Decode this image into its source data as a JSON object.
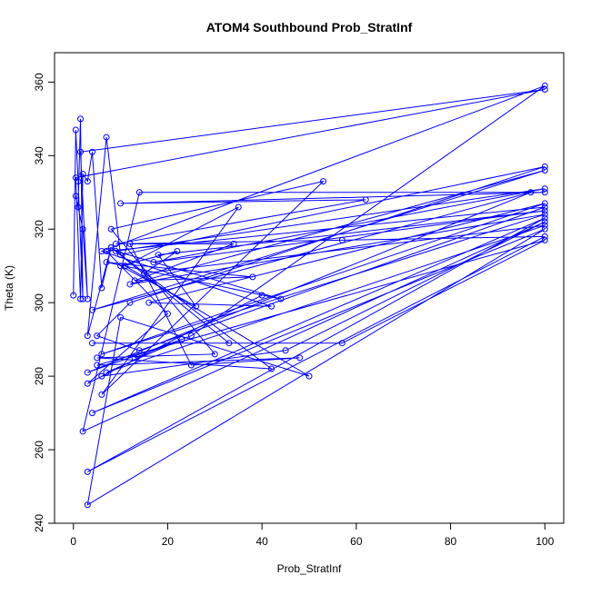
{
  "chart_data": {
    "type": "line",
    "title": "ATOM4 Southbound Prob_StratInf",
    "x_label": "Prob_StratInf",
    "y_label": "Theta (K)",
    "color": "#0000ff",
    "x": [
      0,
      0.5,
      1,
      2,
      1.5,
      1,
      0.5,
      2,
      3,
      1.5,
      100,
      0.5,
      1.5,
      2,
      3,
      4,
      6,
      8,
      3,
      7,
      10,
      100,
      12,
      5,
      14,
      100,
      7,
      20,
      3,
      40,
      6,
      45,
      100,
      2,
      14,
      100,
      10,
      62,
      9,
      57,
      100,
      3,
      100,
      4,
      100,
      3,
      10,
      50,
      11,
      35,
      6,
      53,
      8,
      30,
      5,
      42,
      8,
      33,
      4,
      57,
      100,
      5,
      48,
      25,
      12,
      34,
      13,
      38,
      7,
      44,
      9,
      100,
      17,
      100,
      18,
      26,
      10,
      22,
      15,
      100,
      7,
      23,
      3,
      97,
      4,
      100,
      12,
      100,
      6,
      100,
      16,
      42,
      6,
      100,
      25,
      13
    ],
    "values": [
      302,
      347,
      333,
      301,
      350,
      326,
      329,
      320,
      301,
      341,
      358,
      334,
      301,
      335,
      333,
      341,
      304,
      315,
      291,
      345,
      313,
      337,
      300,
      291,
      287,
      326,
      314,
      297,
      278,
      302,
      280,
      287,
      322,
      265,
      330,
      330,
      327,
      328,
      316,
      317,
      318,
      254,
      323,
      270,
      320,
      245,
      296,
      280,
      310,
      326,
      275,
      333,
      320,
      286,
      285,
      282,
      315,
      289,
      289,
      289,
      317,
      283,
      285,
      283,
      316,
      316,
      306,
      307,
      311,
      301,
      314,
      331,
      311,
      325,
      313,
      299,
      310,
      314,
      308,
      321,
      281,
      290,
      281,
      330,
      298,
      336,
      305,
      324,
      286,
      327,
      300,
      299,
      314,
      359,
      291,
      285
    ],
    "xlim": [
      -4,
      104
    ],
    "ylim": [
      240,
      368
    ],
    "xticks": [
      0,
      20,
      40,
      60,
      80,
      100
    ],
    "yticks": [
      240,
      260,
      280,
      300,
      320,
      340,
      360
    ]
  }
}
